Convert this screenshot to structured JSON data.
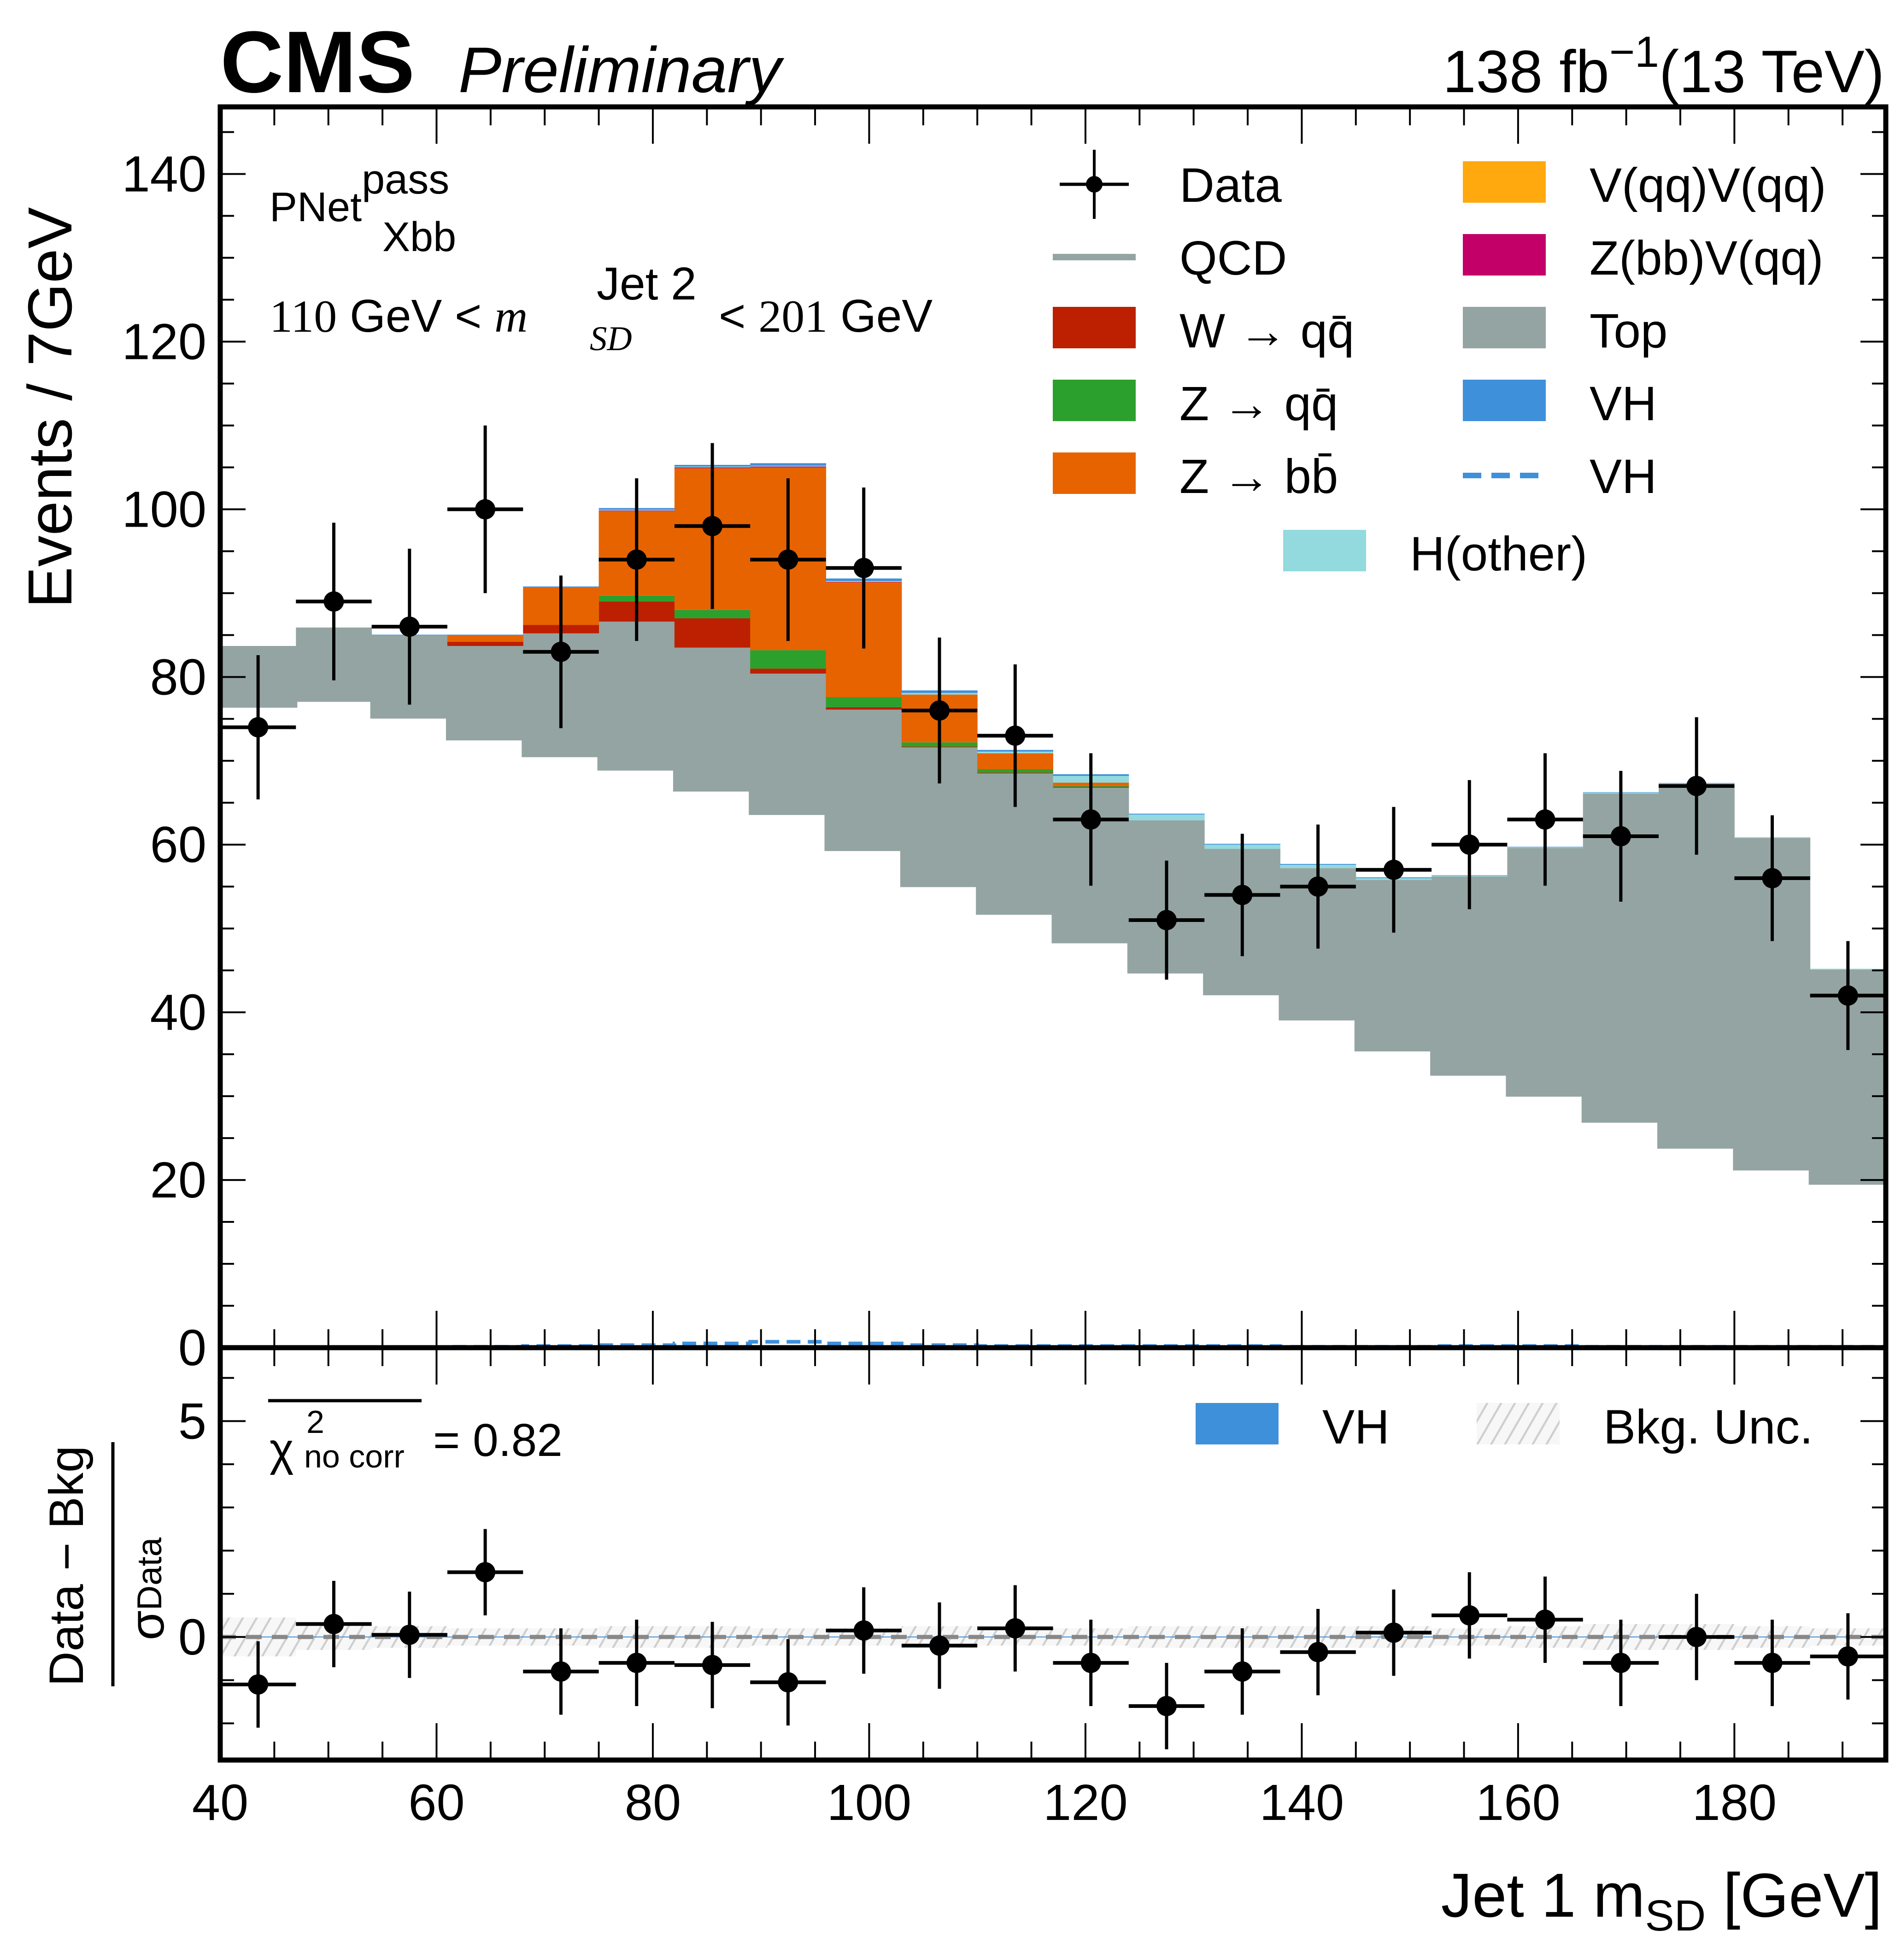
{
  "header": {
    "experiment": "CMS",
    "status": "Preliminary",
    "lumi_value": "138 fb",
    "lumi_exp": "−1",
    "energy": "(13 TeV)"
  },
  "annotations": {
    "tagger_base": "PNet",
    "tagger_sup": "pass",
    "tagger_sub": "Xbb",
    "cut_low": "110",
    "cut_unit1": " GeV < ",
    "cut_var": "m",
    "cut_var_sup": "Jet 2",
    "cut_var_sub": "SD",
    "cut_lt": " < ",
    "cut_high": "201",
    "cut_unit2": " GeV",
    "chi2_symbol": "χ",
    "chi2_sup": "2",
    "chi2_sub": "no corr",
    "chi2_value": " = 0.82"
  },
  "legend_main": [
    {
      "key": "data",
      "label": "Data",
      "type": "marker",
      "color": "#000000"
    },
    {
      "key": "qcd",
      "label": "QCD",
      "type": "line",
      "color": "#94a4a2"
    },
    {
      "key": "wqq",
      "label": "W → qq̄",
      "type": "fill",
      "color": "#bd1f01"
    },
    {
      "key": "zqq",
      "label": "Z → qq̄",
      "type": "fill",
      "color": "#2ca02c"
    },
    {
      "key": "zbb",
      "label": "Z → bb̄",
      "type": "fill",
      "color": "#e76300"
    },
    {
      "key": "vqqvqq",
      "label": "V(qq)V(qq)",
      "type": "fill",
      "color": "#ffa90e"
    },
    {
      "key": "zbbvqq",
      "label": "Z(bb)V(qq)",
      "type": "fill",
      "color": "#c20068"
    },
    {
      "key": "top",
      "label": "Top",
      "type": "fill",
      "color": "#94a4a2"
    },
    {
      "key": "vh",
      "label": "VH",
      "type": "fill",
      "color": "#3f90da"
    },
    {
      "key": "vh_line",
      "label": "VH",
      "type": "dashed",
      "color": "#3f90da"
    },
    {
      "key": "hother",
      "label": "H(other)",
      "type": "fill",
      "color": "#92dadd"
    }
  ],
  "legend_ratio": [
    {
      "key": "vh",
      "label": "VH",
      "type": "fill",
      "color": "#3f90da"
    },
    {
      "key": "bkgunc",
      "label": "Bkg. Unc.",
      "type": "hatch",
      "color": "#cccccc"
    }
  ],
  "chart_data": [
    {
      "type": "bar",
      "subtype": "stacked-histogram",
      "title": "",
      "xlabel": "Jet 1 m_SD [GeV]",
      "ylabel": "Events / 7GeV",
      "xlim": [
        40,
        194
      ],
      "ylim": [
        0,
        148
      ],
      "xticks": [
        40,
        60,
        80,
        100,
        120,
        140,
        160,
        180
      ],
      "yticks": [
        0,
        20,
        40,
        60,
        80,
        100,
        120,
        140
      ],
      "grid": false,
      "legend_position": "top-right",
      "bin_edges": [
        40,
        47,
        54,
        61,
        68,
        75,
        82,
        89,
        96,
        103,
        110,
        117,
        124,
        131,
        138,
        145,
        152,
        159,
        166,
        173,
        180,
        187,
        194
      ],
      "series": [
        {
          "name": "QCD",
          "kind": "base-line",
          "values": [
            76.5,
            77.2,
            75.2,
            72.6,
            70.6,
            69.0,
            66.5,
            63.7,
            59.4,
            55.1,
            51.8,
            48.4,
            44.8,
            42.2,
            39.2,
            35.5,
            32.6,
            30.1,
            27.0,
            23.9,
            21.3,
            19.6
          ]
        },
        {
          "name": "Top",
          "kind": "stack",
          "values": [
            7.2,
            8.7,
            9.8,
            11.1,
            14.6,
            17.6,
            17.0,
            16.7,
            16.7,
            16.5,
            16.7,
            18.4,
            18.1,
            17.3,
            18.0,
            20.3,
            23.6,
            29.5,
            39.1,
            43.3,
            39.5,
            25.5
          ]
        },
        {
          "name": "W → qq̄",
          "kind": "stack",
          "values": [
            0,
            0,
            0,
            0.5,
            1.0,
            2.4,
            3.5,
            0.6,
            0.3,
            0.1,
            0.1,
            0.1,
            0,
            0,
            0,
            0,
            0,
            0,
            0,
            0,
            0,
            0
          ]
        },
        {
          "name": "Z → qq̄",
          "kind": "stack",
          "values": [
            0,
            0,
            0,
            0,
            0,
            0.7,
            1.0,
            2.2,
            1.2,
            0.5,
            0.4,
            0.1,
            0,
            0,
            0,
            0,
            0,
            0,
            0,
            0,
            0,
            0
          ]
        },
        {
          "name": "Z → bb̄",
          "kind": "stack",
          "values": [
            0,
            0,
            0,
            0.8,
            4.5,
            10.1,
            16.9,
            21.8,
            13.7,
            5.7,
            1.9,
            0.4,
            0,
            0,
            0,
            0,
            0,
            0,
            0,
            0,
            0,
            0
          ]
        },
        {
          "name": "Z(bb)V(qq)",
          "kind": "stack",
          "values": [
            0,
            0,
            0,
            0,
            0,
            0.05,
            0.1,
            0.1,
            0.05,
            0,
            0,
            0,
            0,
            0,
            0,
            0,
            0,
            0,
            0,
            0,
            0,
            0
          ]
        },
        {
          "name": "H(other)",
          "kind": "stack",
          "values": [
            0,
            0,
            0,
            0,
            0,
            0.1,
            0.1,
            0.1,
            0.1,
            0.2,
            0.2,
            0.8,
            0.7,
            0.5,
            0.4,
            0.2,
            0.1,
            0.1,
            0.1,
            0.1,
            0.1,
            0.1
          ]
        },
        {
          "name": "VH",
          "kind": "stack",
          "values": [
            0,
            0,
            0.05,
            0.05,
            0.1,
            0.2,
            0.2,
            0.3,
            0.3,
            0.3,
            0.2,
            0.2,
            0.1,
            0.1,
            0.1,
            0.1,
            0.05,
            0.05,
            0.05,
            0.05,
            0,
            0
          ]
        },
        {
          "name": "VH (dashed)",
          "kind": "line",
          "values": [
            0,
            0,
            0,
            0.1,
            0.2,
            0.3,
            0.5,
            0.7,
            0.5,
            0.3,
            0.2,
            0.2,
            0.2,
            0.2,
            0.1,
            0.1,
            0.2,
            0.2,
            0.1,
            0.1,
            0.1,
            0.1
          ]
        }
      ],
      "data": {
        "name": "Data",
        "x": [
          43.5,
          50.5,
          57.5,
          64.5,
          71.5,
          78.5,
          85.5,
          92.5,
          99.5,
          106.5,
          113.5,
          120.5,
          127.5,
          134.5,
          141.5,
          148.5,
          155.5,
          162.5,
          169.5,
          176.5,
          183.5,
          190.5
        ],
        "y": [
          74,
          89,
          86,
          100,
          83,
          94,
          98,
          94,
          93,
          76,
          73,
          63,
          51,
          54,
          55,
          57,
          60,
          63,
          61,
          67,
          56,
          42
        ],
        "yerr": [
          8.6,
          9.4,
          9.3,
          10.0,
          9.1,
          9.7,
          9.9,
          9.7,
          9.6,
          8.7,
          8.5,
          7.9,
          7.1,
          7.3,
          7.4,
          7.5,
          7.7,
          7.9,
          7.8,
          8.2,
          7.5,
          6.5
        ]
      }
    },
    {
      "type": "scatter",
      "subtype": "pull",
      "xlabel": "Jet 1 m_SD [GeV]",
      "ylabel": "(Data − Bkg) / σ_Data",
      "ylabel_num": "Data − Bkg",
      "ylabel_den": "σ",
      "ylabel_den_sub": "Data",
      "xlim": [
        40,
        194
      ],
      "ylim": [
        -2.85,
        6.7
      ],
      "yticks": [
        0,
        5
      ],
      "xticks": [
        40,
        60,
        80,
        100,
        120,
        140,
        160,
        180
      ],
      "legend_position": "top-right",
      "x": [
        43.5,
        50.5,
        57.5,
        64.5,
        71.5,
        78.5,
        85.5,
        92.5,
        99.5,
        106.5,
        113.5,
        120.5,
        127.5,
        134.5,
        141.5,
        148.5,
        155.5,
        162.5,
        169.5,
        176.5,
        183.5,
        190.5
      ],
      "y": [
        -1.1,
        0.3,
        0.05,
        1.5,
        -0.8,
        -0.6,
        -0.65,
        -1.05,
        0.15,
        -0.2,
        0.2,
        -0.6,
        -1.6,
        -0.8,
        -0.35,
        0.1,
        0.5,
        0.4,
        -0.6,
        0.0,
        -0.6,
        -0.45
      ],
      "yerr": [
        1,
        1,
        1,
        1,
        1,
        1,
        1,
        1,
        1,
        1,
        1,
        1,
        1,
        1,
        1,
        1,
        1,
        1,
        1,
        1,
        1,
        1
      ],
      "bkg_unc": [
        0.45,
        0.3,
        0.25,
        0.2,
        0.2,
        0.25,
        0.25,
        0.2,
        0.2,
        0.25,
        0.2,
        0.2,
        0.25,
        0.25,
        0.25,
        0.25,
        0.2,
        0.25,
        0.3,
        0.3,
        0.25,
        0.2
      ]
    }
  ],
  "x_tick_labels": [
    "40",
    "60",
    "80",
    "100",
    "120",
    "140",
    "160",
    "180"
  ],
  "y_tick_labels": [
    "0",
    "20",
    "40",
    "60",
    "80",
    "100",
    "120",
    "140"
  ],
  "ratio_tick_labels": [
    "0",
    "5"
  ],
  "xlabel_main": "Jet 1 m",
  "xlabel_sub": "SD",
  "xlabel_unit": " [GeV]",
  "ylabel_main": "Events / 7GeV"
}
